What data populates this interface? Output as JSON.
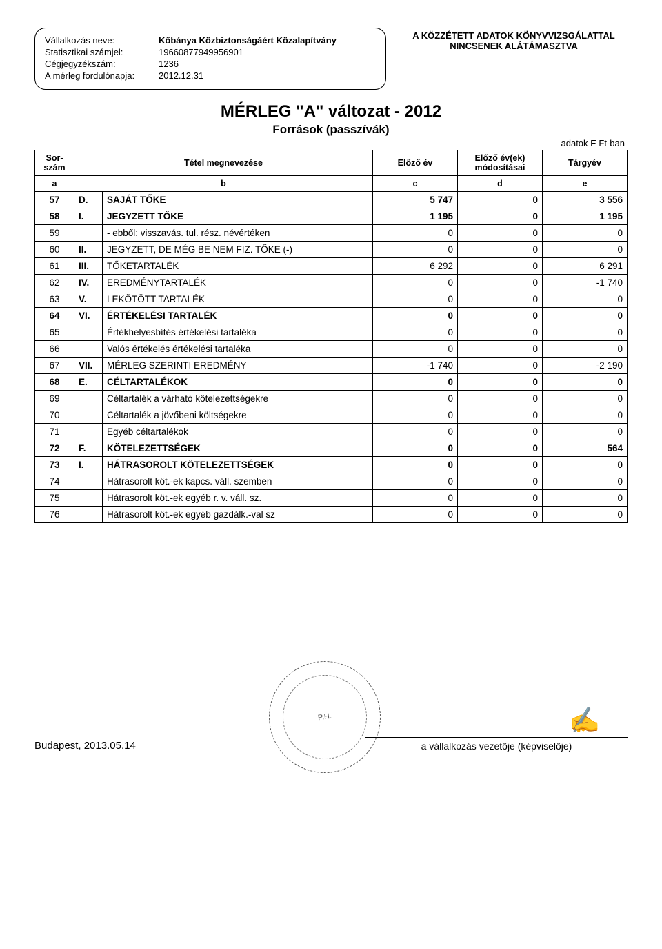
{
  "company": {
    "name_label": "Vállalkozás neve:",
    "name_value": "Kőbánya Közbiztonságáért Közalapítvány",
    "stat_label": "Statisztikai számjel:",
    "stat_value": "19660877949956901",
    "reg_label": "Cégjegyzékszám:",
    "reg_value": "1236",
    "balance_date_label": "A mérleg fordulónapja:",
    "balance_date_value": "2012.12.31"
  },
  "audit_note_line1": "A KÖZZÉTETT ADATOK KÖNYVVIZSGÁLATTAL",
  "audit_note_line2": "NINCSENEK ALÁTÁMASZTVA",
  "title_main": "MÉRLEG \"A\" változat - 2012",
  "title_sub": "Források (passzívák)",
  "units_label": "adatok E Ft-ban",
  "headers": {
    "sor": "Sor-\nszám",
    "name": "Tétel megnevezése",
    "prev": "Előző év",
    "mod": "Előző év(ek)\nmódosításai",
    "curr": "Tárgyév",
    "a": "a",
    "b": "b",
    "c": "c",
    "d": "d",
    "e": "e"
  },
  "rows": [
    {
      "n": "57",
      "prefix": "D.",
      "name": "SAJÁT TŐKE",
      "c": "5 747",
      "d": "0",
      "e": "3 556",
      "bold": true
    },
    {
      "n": "58",
      "prefix": "I.",
      "name": "JEGYZETT TŐKE",
      "c": "1 195",
      "d": "0",
      "e": "1 195",
      "bold": true
    },
    {
      "n": "59",
      "prefix": "",
      "name": "- ebből: visszavás. tul. rész. névértéken",
      "c": "0",
      "d": "0",
      "e": "0",
      "bold": false
    },
    {
      "n": "60",
      "prefix": "II.",
      "name": "JEGYZETT, DE MÉG BE NEM FIZ. TŐKE (-)",
      "c": "0",
      "d": "0",
      "e": "0",
      "bold": false
    },
    {
      "n": "61",
      "prefix": "III.",
      "name": "TŐKETARTALÉK",
      "c": "6 292",
      "d": "0",
      "e": "6 291",
      "bold": false
    },
    {
      "n": "62",
      "prefix": "IV.",
      "name": "EREDMÉNYTARTALÉK",
      "c": "0",
      "d": "0",
      "e": "-1 740",
      "bold": false
    },
    {
      "n": "63",
      "prefix": "V.",
      "name": "LEKÖTÖTT TARTALÉK",
      "c": "0",
      "d": "0",
      "e": "0",
      "bold": false
    },
    {
      "n": "64",
      "prefix": "VI.",
      "name": "ÉRTÉKELÉSI TARTALÉK",
      "c": "0",
      "d": "0",
      "e": "0",
      "bold": true
    },
    {
      "n": "65",
      "prefix": "",
      "name": "Értékhelyesbítés értékelési tartaléka",
      "c": "0",
      "d": "0",
      "e": "0",
      "bold": false
    },
    {
      "n": "66",
      "prefix": "",
      "name": "Valós értékelés értékelési tartaléka",
      "c": "0",
      "d": "0",
      "e": "0",
      "bold": false
    },
    {
      "n": "67",
      "prefix": "VII.",
      "name": "MÉRLEG SZERINTI EREDMÉNY",
      "c": "-1 740",
      "d": "0",
      "e": "-2 190",
      "bold": false
    },
    {
      "n": "68",
      "prefix": "E.",
      "name": "CÉLTARTALÉKOK",
      "c": "0",
      "d": "0",
      "e": "0",
      "bold": true
    },
    {
      "n": "69",
      "prefix": "",
      "name": "Céltartalék a várható kötelezettségekre",
      "c": "0",
      "d": "0",
      "e": "0",
      "bold": false
    },
    {
      "n": "70",
      "prefix": "",
      "name": "Céltartalék a jövőbeni költségekre",
      "c": "0",
      "d": "0",
      "e": "0",
      "bold": false
    },
    {
      "n": "71",
      "prefix": "",
      "name": "Egyéb céltartalékok",
      "c": "0",
      "d": "0",
      "e": "0",
      "bold": false
    },
    {
      "n": "72",
      "prefix": "F.",
      "name": "KÖTELEZETTSÉGEK",
      "c": "0",
      "d": "0",
      "e": "564",
      "bold": true
    },
    {
      "n": "73",
      "prefix": "I.",
      "name": "HÁTRASOROLT KÖTELEZETTSÉGEK",
      "c": "0",
      "d": "0",
      "e": "0",
      "bold": true
    },
    {
      "n": "74",
      "prefix": "",
      "name": "Hátrasorolt köt.-ek kapcs. váll. szemben",
      "c": "0",
      "d": "0",
      "e": "0",
      "bold": false
    },
    {
      "n": "75",
      "prefix": "",
      "name": "Hátrasorolt köt.-ek egyéb r. v. váll. sz.",
      "c": "0",
      "d": "0",
      "e": "0",
      "bold": false
    },
    {
      "n": "76",
      "prefix": "",
      "name": "Hátrasorolt köt.-ek egyéb gazdálk.-val sz",
      "c": "0",
      "d": "0",
      "e": "0",
      "bold": false
    }
  ],
  "footer": {
    "date": "Budapest, 2013.05.14",
    "stamp_text": "P.H.",
    "sign_label": "a vállalkozás vezetője (képviselője)"
  }
}
